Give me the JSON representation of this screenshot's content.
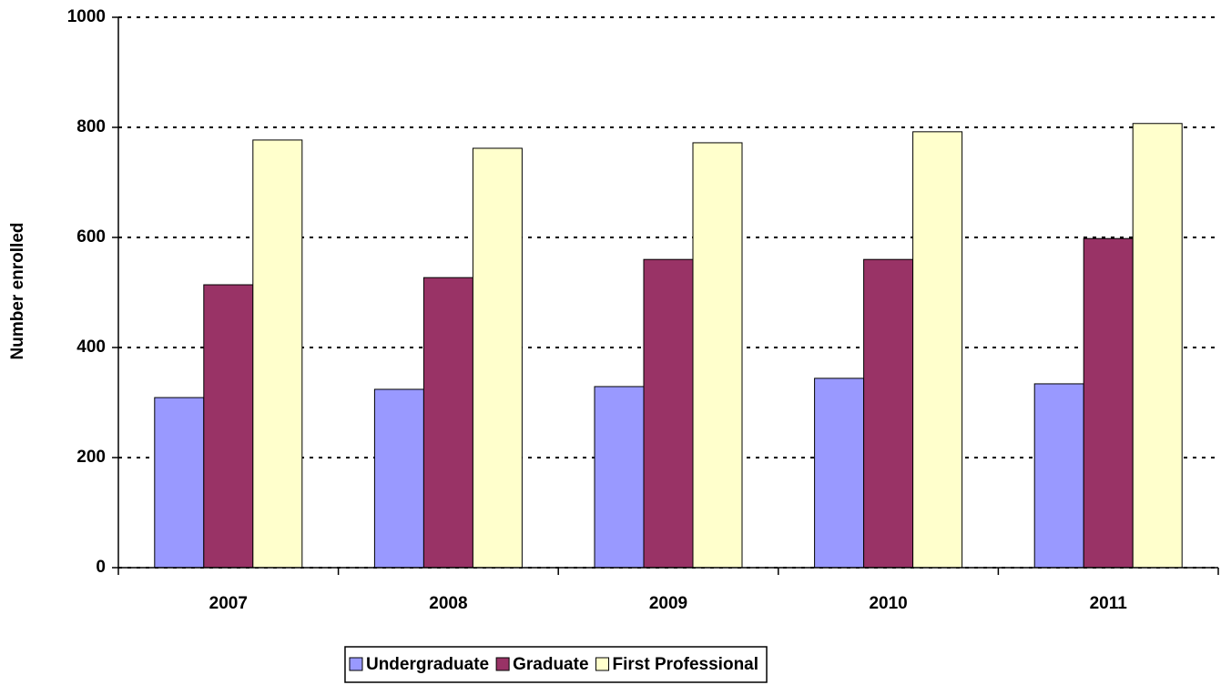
{
  "chart_data": {
    "type": "bar",
    "y_label": "Number enrolled",
    "categories": [
      "2007",
      "2008",
      "2009",
      "2010",
      "2011"
    ],
    "series": [
      {
        "name": "Undergraduate",
        "color": "#9999ff",
        "values": [
          309,
          324,
          329,
          344,
          334
        ]
      },
      {
        "name": "Graduate",
        "color": "#993366",
        "values": [
          514,
          527,
          560,
          560,
          598
        ]
      },
      {
        "name": "First Professional",
        "color": "#ffffcc",
        "values": [
          777,
          762,
          772,
          792,
          807
        ]
      }
    ],
    "ylim": [
      0,
      1000
    ],
    "yticks": [
      0,
      200,
      400,
      600,
      800,
      1000
    ],
    "grid": true,
    "legend": "bottom"
  }
}
